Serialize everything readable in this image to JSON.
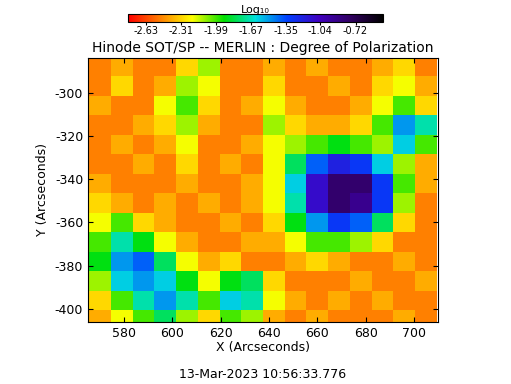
{
  "chart_data": {
    "type": "heatmap",
    "title": "Hinode SOT/SP -- MERLIN : Degree of Polarization",
    "xlabel": "X (Arcseconds)",
    "ylabel": "Y (Arcseconds)",
    "annotations": [
      "13-Mar-2023 10:56:33.776"
    ],
    "x": [
      570,
      579,
      588,
      597,
      606,
      615,
      624,
      633,
      642,
      651,
      660,
      669,
      678,
      687,
      696,
      705
    ],
    "y": [
      -288,
      -297,
      -306,
      -315,
      -324,
      -333,
      -342,
      -351,
      -360,
      -369,
      -378,
      -387,
      -396,
      -405
    ],
    "values": [
      [
        -2.5,
        -2.4,
        -2.5,
        -2.5,
        -2.3,
        -2.1,
        -2.5,
        -2.5,
        -2.4,
        -2.5,
        -2.4,
        -2.5,
        -2.5,
        -2.4,
        -2.3,
        -2.5
      ],
      [
        -2.5,
        -2.3,
        -2.5,
        -2.4,
        -2.1,
        -2.2,
        -2.5,
        -2.5,
        -2.3,
        -2.5,
        -2.5,
        -2.4,
        -2.5,
        -2.3,
        -2.2,
        -2.4
      ],
      [
        -2.4,
        -2.5,
        -2.5,
        -2.2,
        -2.0,
        -2.3,
        -2.5,
        -2.4,
        -2.2,
        -2.4,
        -2.5,
        -2.5,
        -2.4,
        -2.2,
        -2.0,
        -2.3
      ],
      [
        -2.5,
        -2.5,
        -2.4,
        -2.3,
        -2.1,
        -2.4,
        -2.5,
        -2.5,
        -2.1,
        -2.3,
        -2.4,
        -2.4,
        -2.3,
        -2.0,
        -1.5,
        -1.7
      ],
      [
        -2.5,
        -2.4,
        -2.5,
        -2.4,
        -2.2,
        -2.5,
        -2.5,
        -2.4,
        -2.2,
        -2.1,
        -2.0,
        -1.9,
        -2.0,
        -2.1,
        -1.6,
        -2.0
      ],
      [
        -2.5,
        -2.5,
        -2.4,
        -2.5,
        -2.3,
        -2.5,
        -2.4,
        -2.5,
        -2.2,
        -1.8,
        -1.4,
        -1.2,
        -1.3,
        -1.6,
        -2.1,
        -2.4
      ],
      [
        -2.4,
        -2.5,
        -2.5,
        -2.5,
        -2.4,
        -2.5,
        -2.5,
        -2.4,
        -2.2,
        -1.6,
        -1.1,
        -0.8,
        -0.8,
        -1.3,
        -2.0,
        -2.4
      ],
      [
        -2.3,
        -2.4,
        -2.5,
        -2.4,
        -2.5,
        -2.4,
        -2.5,
        -2.4,
        -2.2,
        -1.7,
        -1.1,
        -0.8,
        -0.9,
        -1.3,
        -2.1,
        -2.5
      ],
      [
        -2.2,
        -2.0,
        -2.3,
        -2.4,
        -2.5,
        -2.5,
        -2.4,
        -2.5,
        -2.3,
        -1.9,
        -1.5,
        -1.3,
        -1.4,
        -1.8,
        -2.3,
        -2.5
      ],
      [
        -2.0,
        -1.7,
        -1.9,
        -2.2,
        -2.4,
        -2.5,
        -2.5,
        -2.4,
        -2.4,
        -2.2,
        -2.0,
        -2.0,
        -2.1,
        -2.3,
        -2.5,
        -2.5
      ],
      [
        -1.9,
        -1.5,
        -1.4,
        -1.8,
        -2.2,
        -2.4,
        -2.3,
        -2.5,
        -2.5,
        -2.4,
        -2.3,
        -2.4,
        -2.5,
        -2.5,
        -2.4,
        -2.5
      ],
      [
        -2.1,
        -1.6,
        -1.5,
        -1.6,
        -1.9,
        -2.2,
        -1.9,
        -1.8,
        -2.3,
        -2.5,
        -2.5,
        -2.5,
        -2.4,
        -2.5,
        -2.5,
        -2.4
      ],
      [
        -2.3,
        -2.0,
        -1.7,
        -1.5,
        -1.7,
        -2.0,
        -1.6,
        -1.7,
        -2.2,
        -2.4,
        -2.5,
        -2.4,
        -2.5,
        -2.4,
        -2.5,
        -2.5
      ],
      [
        -2.4,
        -2.2,
        -2.0,
        -1.8,
        -2.1,
        -2.3,
        -2.0,
        -2.1,
        -2.4,
        -2.5,
        -2.4,
        -2.5,
        -2.5,
        -2.5,
        -2.4,
        -2.5
      ]
    ],
    "xlim": [
      565,
      710
    ],
    "ylim": [
      -406,
      -284
    ],
    "xticks": [
      580,
      600,
      620,
      640,
      660,
      680,
      700
    ],
    "yticks": [
      -300,
      -320,
      -340,
      -360,
      -380,
      -400
    ],
    "colorbar": {
      "label": "Log₁₀",
      "range": [
        -2.79,
        -0.47
      ],
      "ticks": [
        -2.63,
        -2.31,
        -1.99,
        -1.67,
        -1.35,
        -1.04,
        -0.72
      ]
    }
  }
}
